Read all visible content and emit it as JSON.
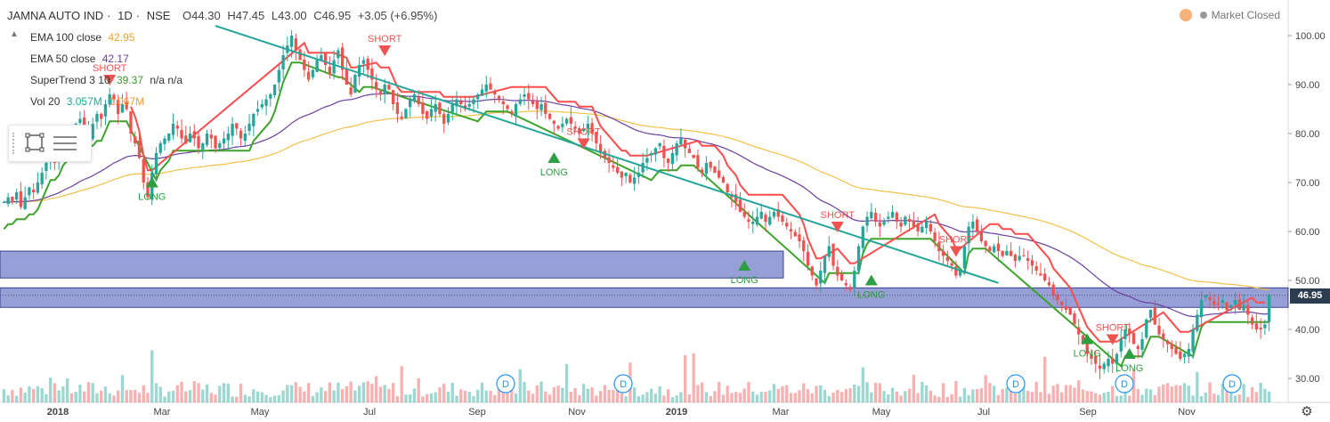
{
  "header": {
    "symbol": "JAMNA AUTO IND",
    "interval": "1D",
    "exchange": "NSE",
    "ohlc": {
      "open": "O44.30",
      "high": "H47.45",
      "low": "L43.00",
      "close": "C46.95",
      "change": "+3.05 (+6.95%)"
    },
    "market_status": "Market Closed"
  },
  "indicators": [
    {
      "label": "EMA 100 close",
      "value": "42.95",
      "color": "#f0a030"
    },
    {
      "label": "EMA 50 close",
      "value": "42.17",
      "color": "#6a3fa0"
    },
    {
      "label": "SuperTrend 3 10",
      "value": "39.37",
      "extra": "n/a  n/a",
      "color": "#3c9a2a"
    },
    {
      "label": "Vol 20",
      "value": "3.057M",
      "extra": "1.067M",
      "color": "#26a69a",
      "extra_color": "#f39c3b"
    }
  ],
  "price_label": "46.95",
  "colors": {
    "up": "#26a69a",
    "down": "#ef5350",
    "trendline": "#26a69a",
    "zone": "#3f51b5",
    "ema100": "#f4c04a",
    "ema50": "#6a3fa0",
    "st_up": "#3da32c",
    "st_down": "#ff4d4d",
    "panel_bg": "#ffffff"
  },
  "chart_data": {
    "type": "candlestick",
    "y_axis_ticks": [
      "100.00",
      "90.00",
      "80.00",
      "70.00",
      "60.00",
      "50.00",
      "40.00",
      "30.00"
    ],
    "ylim": [
      28,
      103
    ],
    "x_axis_labels": [
      {
        "label": "2018",
        "year": true
      },
      {
        "label": "Mar"
      },
      {
        "label": "May"
      },
      {
        "label": "Jul"
      },
      {
        "label": "Sep"
      },
      {
        "label": "Nov"
      },
      {
        "label": "2019",
        "year": true
      },
      {
        "label": "Mar"
      },
      {
        "label": "May"
      },
      {
        "label": "Jul"
      },
      {
        "label": "Sep"
      },
      {
        "label": "Nov"
      }
    ],
    "candles_close": [
      66,
      67,
      66,
      68,
      65,
      67,
      69,
      68,
      70,
      72,
      74,
      76,
      74,
      77,
      79,
      80,
      78,
      82,
      83,
      81,
      79,
      82,
      84,
      83,
      86,
      88,
      87,
      84,
      86,
      85,
      80,
      78,
      75,
      70,
      67,
      72,
      76,
      78,
      79,
      80,
      82,
      81,
      79,
      78,
      80,
      79,
      77,
      78,
      80,
      79,
      77,
      78,
      79,
      80,
      82,
      81,
      79,
      80,
      82,
      84,
      85,
      86,
      87,
      88,
      90,
      93,
      96,
      98,
      100,
      97,
      95,
      93,
      91,
      93,
      95,
      96,
      94,
      92,
      95,
      97,
      93,
      90,
      88,
      92,
      94,
      95,
      93,
      91,
      89,
      88,
      90,
      89,
      86,
      84,
      83,
      85,
      87,
      88,
      86,
      84,
      83,
      85,
      86,
      84,
      82,
      84,
      86,
      87,
      86,
      85,
      86,
      87,
      88,
      89,
      90,
      89,
      88,
      87,
      86,
      85,
      84,
      86,
      87,
      88,
      87,
      86,
      85,
      86,
      84,
      83,
      82,
      81,
      82,
      83,
      82,
      81,
      80,
      81,
      82,
      80,
      78,
      76,
      75,
      74,
      73,
      72,
      71,
      72,
      70,
      71,
      72,
      74,
      75,
      76,
      77,
      78,
      75,
      74,
      76,
      78,
      79,
      77,
      76,
      75,
      73,
      72,
      74,
      73,
      72,
      71,
      70,
      68,
      67,
      66,
      64,
      63,
      62,
      62,
      63,
      64,
      62,
      63,
      64,
      63,
      62,
      61,
      60,
      59,
      58,
      56,
      53,
      51,
      49,
      52,
      55,
      57,
      53,
      51,
      50,
      49,
      48,
      52,
      57,
      61,
      63,
      64,
      62,
      61,
      62,
      63,
      64,
      62,
      61,
      63,
      62,
      61,
      60,
      61,
      62,
      60,
      58,
      56,
      55,
      54,
      53,
      51,
      52,
      57,
      61,
      62,
      60,
      58,
      57,
      56,
      57,
      56,
      55,
      56,
      55,
      54,
      55,
      55,
      54,
      53,
      52,
      51,
      50,
      49,
      47,
      46,
      45,
      44,
      43,
      41,
      39,
      37,
      35,
      34,
      33,
      32,
      33,
      34,
      33,
      35,
      38,
      40,
      39,
      37,
      36,
      38,
      42,
      44,
      41,
      39,
      38,
      37,
      36,
      35,
      34,
      35,
      36,
      40,
      43,
      46,
      47,
      46,
      45,
      45,
      46,
      44,
      45,
      46,
      44,
      45,
      43,
      41,
      40,
      40,
      41,
      47
    ],
    "resistance_zones": [
      {
        "top": 56,
        "bottom": 50.5
      },
      {
        "top": 48.5,
        "bottom": 44.5
      }
    ],
    "trendline": {
      "from": {
        "idx": 50,
        "price": 102
      },
      "to": {
        "idx": 235,
        "price": 49.5
      }
    },
    "signals": [
      {
        "type": "SHORT",
        "idx": 25,
        "price": 92
      },
      {
        "type": "LONG",
        "idx": 35,
        "price": 69
      },
      {
        "type": "SHORT",
        "idx": 90,
        "price": 98
      },
      {
        "type": "LONG",
        "idx": 130,
        "price": 74
      },
      {
        "type": "SHORT",
        "idx": 137,
        "price": 79
      },
      {
        "type": "LONG",
        "idx": 175,
        "price": 52
      },
      {
        "type": "SHORT",
        "idx": 197,
        "price": 62
      },
      {
        "type": "LONG",
        "idx": 205,
        "price": 49
      },
      {
        "type": "SHORT",
        "idx": 225,
        "price": 57
      },
      {
        "type": "LONG",
        "idx": 256,
        "price": 37
      },
      {
        "type": "SHORT",
        "idx": 262,
        "price": 39
      },
      {
        "type": "LONG",
        "idx": 266,
        "price": 34
      }
    ],
    "dividend_markers": [
      "D",
      "D",
      "D",
      "D",
      "D"
    ]
  }
}
